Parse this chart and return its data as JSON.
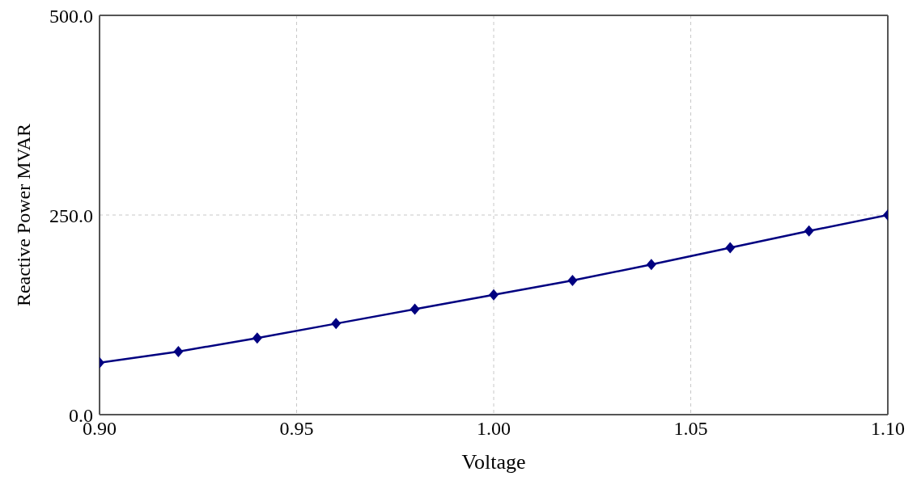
{
  "chart_data": {
    "type": "line",
    "xlabel": "Voltage",
    "ylabel": "Reactive Power MVAR",
    "x": [
      0.9,
      0.92,
      0.94,
      0.96,
      0.98,
      1.0,
      1.02,
      1.04,
      1.06,
      1.08,
      1.1
    ],
    "series": [
      {
        "color": "#000080",
        "values": [
          65,
          79,
          96,
          114,
          132,
          150,
          168,
          188,
          209,
          230,
          250
        ]
      }
    ],
    "xlim": [
      0.9,
      1.1
    ],
    "xticks": [
      {
        "value": 0.9,
        "label": "0.90"
      },
      {
        "value": 0.95,
        "label": "0.95"
      },
      {
        "value": 1.0,
        "label": "1.00"
      },
      {
        "value": 1.05,
        "label": "1.05"
      },
      {
        "value": 1.1,
        "label": "1.10"
      }
    ],
    "ylim": [
      0,
      500
    ],
    "yticks": [
      {
        "value": 0,
        "label": "0.0"
      },
      {
        "value": 250,
        "label": "250.0"
      },
      {
        "value": 500,
        "label": "500.0"
      }
    ],
    "grid": true,
    "marker": "diamond",
    "line_style": "solid",
    "legend": false
  }
}
